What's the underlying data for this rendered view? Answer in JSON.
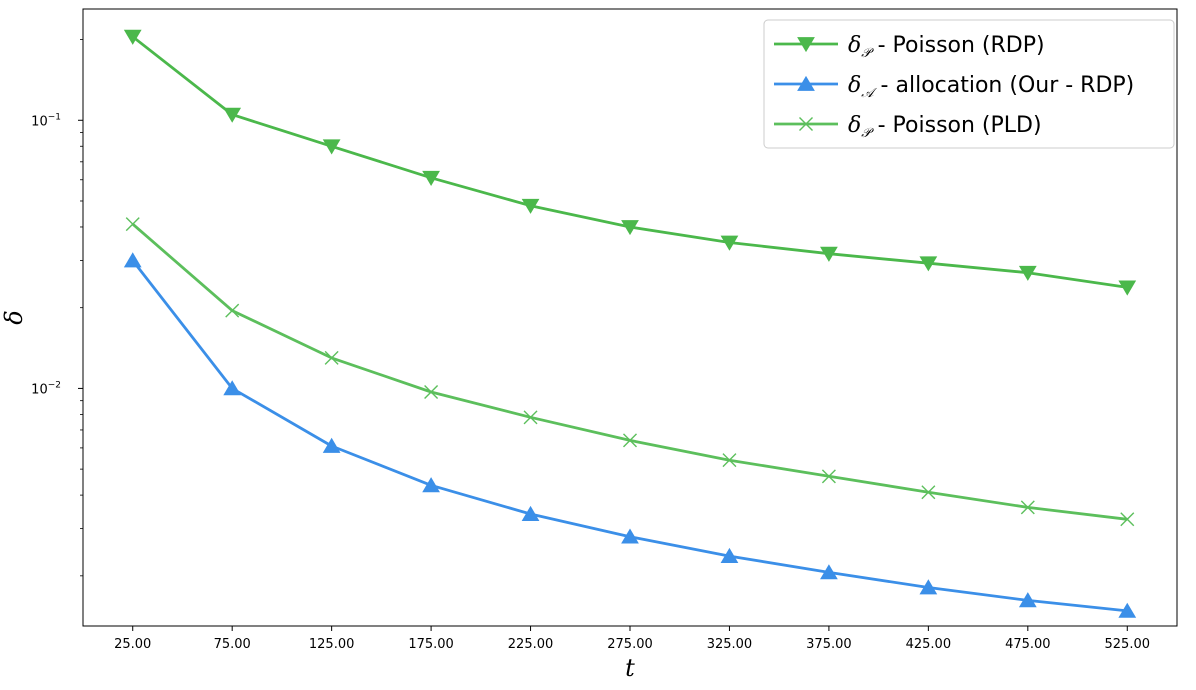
{
  "chart_data": {
    "type": "line",
    "title": "",
    "xlabel": "t",
    "ylabel": "δ",
    "yscale": "log",
    "x": [
      25,
      75,
      125,
      175,
      225,
      275,
      325,
      375,
      425,
      475,
      525
    ],
    "x_tick_labels": [
      "25.00",
      "75.00",
      "125.00",
      "175.00",
      "225.00",
      "275.00",
      "325.00",
      "375.00",
      "425.00",
      "475.00",
      "525.00"
    ],
    "xlim": [
      0,
      550
    ],
    "ylim": [
      0.0013,
      0.26
    ],
    "y_ticks": [
      {
        "value": 0.1,
        "base": "10",
        "exp": "−1"
      },
      {
        "value": 0.01,
        "base": "10",
        "exp": "−2"
      }
    ],
    "grid": false,
    "legend_position": "top-right",
    "series": [
      {
        "name_symbol": "δ",
        "name_subscript": "𝒫",
        "name_text": " - Poisson (RDP)",
        "color": "#4bb84b",
        "marker": "triangle-down",
        "values": [
          0.205,
          0.105,
          0.08,
          0.061,
          0.048,
          0.04,
          0.035,
          0.0318,
          0.0293,
          0.027,
          0.0238
        ]
      },
      {
        "name_symbol": "δ",
        "name_subscript": "𝒜",
        "name_text": " - allocation (Our - RDP)",
        "color": "#3b8fe8",
        "marker": "triangle-up",
        "values": [
          0.03,
          0.01,
          0.0061,
          0.00435,
          0.0034,
          0.0028,
          0.00237,
          0.00206,
          0.00181,
          0.00162,
          0.00148
        ]
      },
      {
        "name_symbol": "δ",
        "name_subscript": "𝒫",
        "name_text": " - Poisson (PLD)",
        "color": "#5cbf5c",
        "marker": "x",
        "values": [
          0.041,
          0.0195,
          0.013,
          0.0097,
          0.0078,
          0.0064,
          0.0054,
          0.0047,
          0.0041,
          0.0036,
          0.00325
        ]
      }
    ]
  }
}
